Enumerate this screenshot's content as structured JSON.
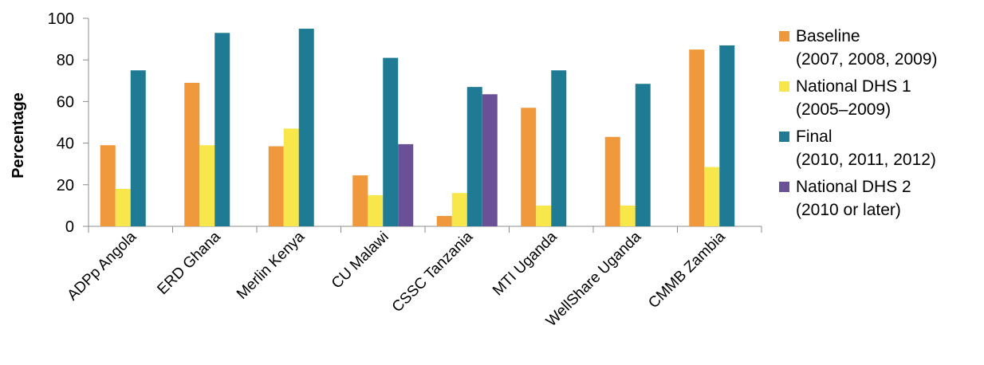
{
  "chart_data": {
    "type": "bar",
    "categories": [
      "ADPp Angola",
      "ERD Ghana",
      "Merlin Kenya",
      "CU Malawi",
      "CSSC Tanzania",
      "MTI Uganda",
      "WellShare Uganda",
      "CMMB Zambia"
    ],
    "series": [
      {
        "name": "Baseline",
        "legend_lines": [
          "Baseline",
          "(2007, 2008, 2009)"
        ],
        "color": "#F0993C",
        "values": [
          39,
          69,
          38.5,
          24.5,
          5,
          57,
          43,
          85
        ]
      },
      {
        "name": "National DHS 1",
        "legend_lines": [
          "National DHS 1",
          "(2005–2009)"
        ],
        "color": "#F7E74A",
        "values": [
          18,
          39,
          47,
          15,
          16,
          10,
          10,
          28.5
        ]
      },
      {
        "name": "Final",
        "legend_lines": [
          "Final",
          "(2010, 2011, 2012)"
        ],
        "color": "#1F7A94",
        "values": [
          75,
          93,
          95,
          81,
          67,
          75,
          68.5,
          87
        ]
      },
      {
        "name": "National DHS 2",
        "legend_lines": [
          "National DHS 2",
          "(2010 or later)"
        ],
        "color": "#6A5197",
        "values": [
          null,
          null,
          null,
          39.5,
          63.5,
          null,
          null,
          null
        ]
      }
    ],
    "xlabel": "",
    "ylabel": "Percentage",
    "ylim": [
      0,
      100
    ],
    "yticks": [
      0,
      20,
      40,
      60,
      80,
      100
    ],
    "grid": false,
    "legend_position": "right"
  }
}
